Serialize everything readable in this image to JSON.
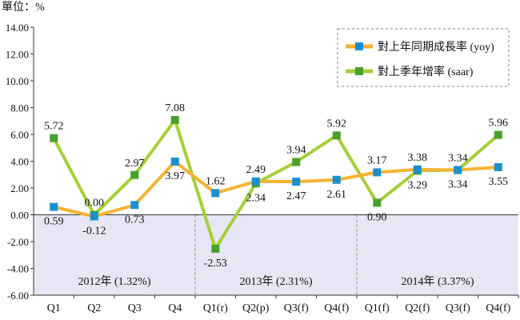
{
  "chart_data": {
    "type": "line",
    "unit_label": "單位：%",
    "categories": [
      "Q1",
      "Q2",
      "Q3",
      "Q4",
      "Q1(r)",
      "Q2(p)",
      "Q3(f)",
      "Q4(f)",
      "Q1(f)",
      "Q2(f)",
      "Q3(f)",
      "Q4(f)"
    ],
    "ylim": [
      -6,
      14
    ],
    "yticks": [
      "14.00",
      "12.00",
      "10.00",
      "8.00",
      "6.00",
      "4.00",
      "2.00",
      "0.00",
      "-2.00",
      "-4.00",
      "-6.00"
    ],
    "series": [
      {
        "name": "對上年同期成長率 (yoy)",
        "color": "#f5b335",
        "marker_color": "#1a8fd0",
        "values": [
          0.59,
          -0.12,
          0.73,
          3.97,
          1.62,
          2.49,
          2.47,
          2.61,
          3.17,
          3.38,
          3.34,
          3.55
        ],
        "labels": [
          "0.59",
          "-0.12",
          "0.73",
          "3.97",
          "1.62",
          "2.49",
          "2.47",
          "2.61",
          "3.17",
          "3.38",
          "3.34",
          "3.55"
        ]
      },
      {
        "name": "對上季年增率 (saar)",
        "color": "#a6ce39",
        "marker_color": "#4aa02c",
        "values": [
          5.72,
          0.0,
          2.97,
          7.08,
          -2.53,
          2.34,
          3.94,
          5.92,
          0.9,
          3.29,
          3.34,
          5.96
        ],
        "labels": [
          "5.72",
          "0.00",
          "2.97",
          "7.08",
          "-2.53",
          "2.34",
          "3.94",
          "5.92",
          "0.90",
          "3.29",
          "3.34",
          "5.96"
        ]
      }
    ],
    "year_groups": [
      {
        "label": "2012年 (1.32%)",
        "start": 0,
        "end": 3
      },
      {
        "label": "2013年 (2.31%)",
        "start": 4,
        "end": 7
      },
      {
        "label": "2014年 (3.37%)",
        "start": 8,
        "end": 11
      }
    ],
    "negative_region_color": "#e6e6f4",
    "legend_position": "top-right"
  }
}
